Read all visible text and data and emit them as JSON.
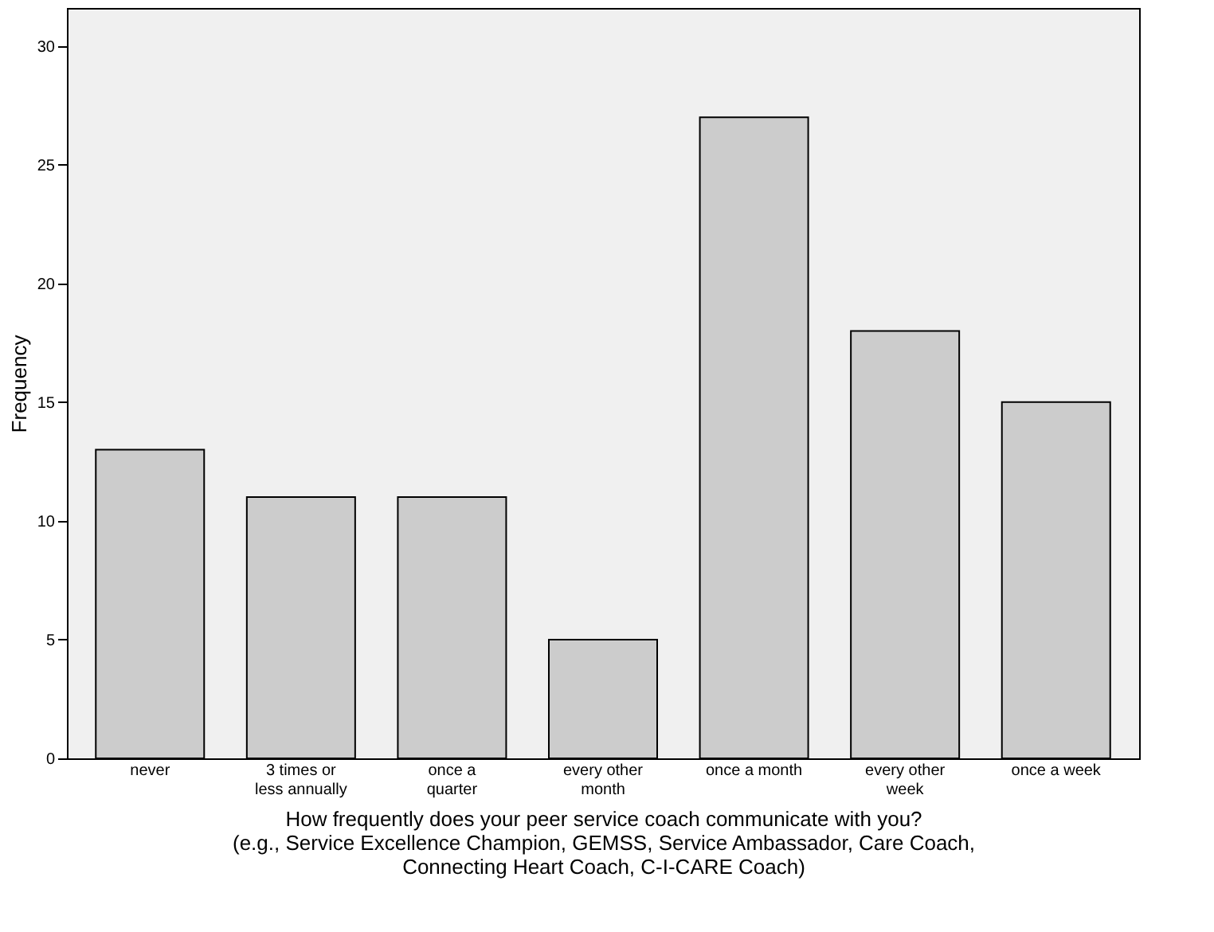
{
  "chart_data": {
    "type": "bar",
    "categories": [
      "never",
      "3 times or\nless annually",
      "once a\nquarter",
      "every other\nmonth",
      "once a month",
      "every other\nweek",
      "once a week"
    ],
    "values": [
      13,
      11,
      11,
      5,
      27,
      18,
      15
    ],
    "color": "#cccccc",
    "xlabel": "How frequently does your peer service coach communicate with you?\n(e.g., Service Excellence Champion, GEMSS, Service Ambassador, Care Coach,\nConnecting Heart Coach, C-I-CARE Coach)",
    "ylabel": "Frequency",
    "ylim": [
      0,
      31.6
    ],
    "yticks": [
      0,
      5,
      10,
      15,
      20,
      25,
      30
    ],
    "grid": false
  }
}
